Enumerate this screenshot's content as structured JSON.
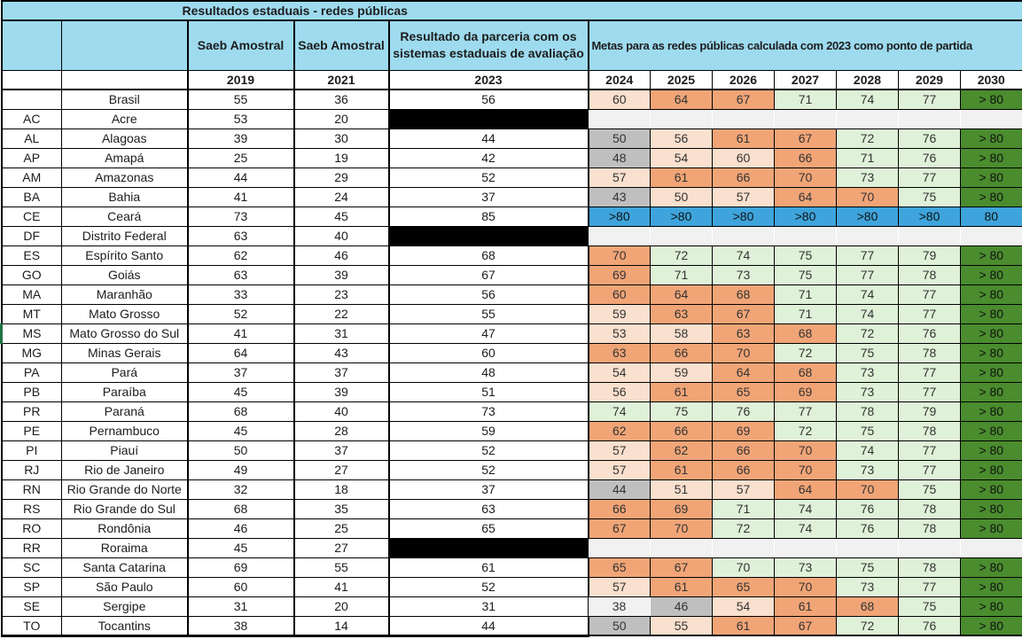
{
  "title": "Resultados estaduais - redes públicas",
  "header": {
    "col_2019_label": "Saeb Amostral",
    "col_2021_label": "Saeb Amostral",
    "col_2023_label": "Resultado da parceria com os sistemas estaduais de avaliação",
    "metas_label": "Metas para as redes públicas calculada com 2023 como ponto de partida",
    "years": [
      "2019",
      "2021",
      "2023",
      "2024",
      "2025",
      "2026",
      "2027",
      "2028",
      "2029",
      "2030"
    ]
  },
  "colors": {
    "header_bg": "#9EDBEF",
    "pale": "#FAE0CE",
    "salmon": "#F1A577",
    "green": "#DFF1D8",
    "dark": "#4A8C2E",
    "blue": "#3EA4DB",
    "gray": "#BFBFBF",
    "empty": "#F1F1F1",
    "redacted_black": "#000000"
  },
  "rows": [
    {
      "code": "",
      "name": "Brasil",
      "s2019": "55",
      "s2021": "36",
      "s2023": "56",
      "redacted2023": false,
      "metas": [
        {
          "v": "60",
          "c": "pale"
        },
        {
          "v": "64",
          "c": "salmon"
        },
        {
          "v": "67",
          "c": "salmon"
        },
        {
          "v": "71",
          "c": "green"
        },
        {
          "v": "74",
          "c": "green"
        },
        {
          "v": "77",
          "c": "green"
        },
        {
          "v": "> 80",
          "c": "dark"
        }
      ]
    },
    {
      "code": "AC",
      "name": "Acre",
      "s2019": "53",
      "s2021": "20",
      "s2023": "",
      "redacted2023": true,
      "metas": [
        {
          "v": "",
          "c": "empty"
        },
        {
          "v": "",
          "c": "empty"
        },
        {
          "v": "",
          "c": "empty"
        },
        {
          "v": "",
          "c": "empty"
        },
        {
          "v": "",
          "c": "empty"
        },
        {
          "v": "",
          "c": "empty"
        },
        {
          "v": "",
          "c": "empty"
        }
      ]
    },
    {
      "code": "AL",
      "name": "Alagoas",
      "s2019": "39",
      "s2021": "30",
      "s2023": "44",
      "redacted2023": false,
      "metas": [
        {
          "v": "50",
          "c": "gray"
        },
        {
          "v": "56",
          "c": "pale"
        },
        {
          "v": "61",
          "c": "salmon"
        },
        {
          "v": "67",
          "c": "salmon"
        },
        {
          "v": "72",
          "c": "green"
        },
        {
          "v": "76",
          "c": "green"
        },
        {
          "v": "> 80",
          "c": "dark"
        }
      ]
    },
    {
      "code": "AP",
      "name": "Amapá",
      "s2019": "25",
      "s2021": "19",
      "s2023": "42",
      "redacted2023": false,
      "metas": [
        {
          "v": "48",
          "c": "gray"
        },
        {
          "v": "54",
          "c": "pale"
        },
        {
          "v": "60",
          "c": "pale"
        },
        {
          "v": "66",
          "c": "salmon"
        },
        {
          "v": "71",
          "c": "green"
        },
        {
          "v": "76",
          "c": "green"
        },
        {
          "v": "> 80",
          "c": "dark"
        }
      ]
    },
    {
      "code": "AM",
      "name": "Amazonas",
      "s2019": "44",
      "s2021": "29",
      "s2023": "52",
      "redacted2023": false,
      "metas": [
        {
          "v": "57",
          "c": "pale"
        },
        {
          "v": "61",
          "c": "salmon"
        },
        {
          "v": "66",
          "c": "salmon"
        },
        {
          "v": "70",
          "c": "salmon"
        },
        {
          "v": "73",
          "c": "green"
        },
        {
          "v": "77",
          "c": "green"
        },
        {
          "v": "> 80",
          "c": "dark"
        }
      ]
    },
    {
      "code": "BA",
      "name": "Bahia",
      "s2019": "41",
      "s2021": "24",
      "s2023": "37",
      "redacted2023": false,
      "metas": [
        {
          "v": "43",
          "c": "gray"
        },
        {
          "v": "50",
          "c": "pale"
        },
        {
          "v": "57",
          "c": "pale"
        },
        {
          "v": "64",
          "c": "salmon"
        },
        {
          "v": "70",
          "c": "salmon"
        },
        {
          "v": "75",
          "c": "green"
        },
        {
          "v": "> 80",
          "c": "dark"
        }
      ]
    },
    {
      "code": "CE",
      "name": "Ceará",
      "s2019": "73",
      "s2021": "45",
      "s2023": "85",
      "redacted2023": false,
      "metas": [
        {
          "v": ">80",
          "c": "blue"
        },
        {
          "v": ">80",
          "c": "blue"
        },
        {
          "v": ">80",
          "c": "blue"
        },
        {
          "v": ">80",
          "c": "blue"
        },
        {
          "v": ">80",
          "c": "blue"
        },
        {
          "v": ">80",
          "c": "blue"
        },
        {
          "v": "80",
          "c": "blue"
        }
      ]
    },
    {
      "code": "DF",
      "name": "Distrito Federal",
      "s2019": "63",
      "s2021": "40",
      "s2023": "",
      "redacted2023": true,
      "metas": [
        {
          "v": "",
          "c": "empty"
        },
        {
          "v": "",
          "c": "empty"
        },
        {
          "v": "",
          "c": "empty"
        },
        {
          "v": "",
          "c": "empty"
        },
        {
          "v": "",
          "c": "empty"
        },
        {
          "v": "",
          "c": "empty"
        },
        {
          "v": "",
          "c": "empty"
        }
      ]
    },
    {
      "code": "ES",
      "name": "Espírito Santo",
      "s2019": "62",
      "s2021": "46",
      "s2023": "68",
      "redacted2023": false,
      "metas": [
        {
          "v": "70",
          "c": "salmon"
        },
        {
          "v": "72",
          "c": "green"
        },
        {
          "v": "74",
          "c": "green"
        },
        {
          "v": "75",
          "c": "green"
        },
        {
          "v": "77",
          "c": "green"
        },
        {
          "v": "79",
          "c": "green"
        },
        {
          "v": "> 80",
          "c": "dark"
        }
      ]
    },
    {
      "code": "GO",
      "name": "Goiás",
      "s2019": "63",
      "s2021": "39",
      "s2023": "67",
      "redacted2023": false,
      "metas": [
        {
          "v": "69",
          "c": "salmon"
        },
        {
          "v": "71",
          "c": "green"
        },
        {
          "v": "73",
          "c": "green"
        },
        {
          "v": "75",
          "c": "green"
        },
        {
          "v": "77",
          "c": "green"
        },
        {
          "v": "78",
          "c": "green"
        },
        {
          "v": "> 80",
          "c": "dark"
        }
      ]
    },
    {
      "code": "MA",
      "name": "Maranhão",
      "s2019": "33",
      "s2021": "23",
      "s2023": "56",
      "redacted2023": false,
      "metas": [
        {
          "v": "60",
          "c": "salmon"
        },
        {
          "v": "64",
          "c": "salmon"
        },
        {
          "v": "68",
          "c": "salmon"
        },
        {
          "v": "71",
          "c": "green"
        },
        {
          "v": "74",
          "c": "green"
        },
        {
          "v": "77",
          "c": "green"
        },
        {
          "v": "> 80",
          "c": "dark"
        }
      ]
    },
    {
      "code": "MT",
      "name": "Mato Grosso",
      "s2019": "52",
      "s2021": "22",
      "s2023": "55",
      "redacted2023": false,
      "metas": [
        {
          "v": "59",
          "c": "pale"
        },
        {
          "v": "63",
          "c": "salmon"
        },
        {
          "v": "67",
          "c": "salmon"
        },
        {
          "v": "71",
          "c": "green"
        },
        {
          "v": "74",
          "c": "green"
        },
        {
          "v": "77",
          "c": "green"
        },
        {
          "v": "> 80",
          "c": "dark"
        }
      ]
    },
    {
      "code": "MS",
      "name": "Mato Grosso do Sul",
      "s2019": "41",
      "s2021": "31",
      "s2023": "47",
      "redacted2023": false,
      "green_mark": true,
      "metas": [
        {
          "v": "53",
          "c": "pale"
        },
        {
          "v": "58",
          "c": "pale"
        },
        {
          "v": "63",
          "c": "salmon"
        },
        {
          "v": "68",
          "c": "salmon"
        },
        {
          "v": "72",
          "c": "green"
        },
        {
          "v": "76",
          "c": "green"
        },
        {
          "v": "> 80",
          "c": "dark"
        }
      ]
    },
    {
      "code": "MG",
      "name": "Minas Gerais",
      "s2019": "64",
      "s2021": "43",
      "s2023": "60",
      "redacted2023": false,
      "metas": [
        {
          "v": "63",
          "c": "salmon"
        },
        {
          "v": "66",
          "c": "salmon"
        },
        {
          "v": "70",
          "c": "salmon"
        },
        {
          "v": "72",
          "c": "green"
        },
        {
          "v": "75",
          "c": "green"
        },
        {
          "v": "78",
          "c": "green"
        },
        {
          "v": "> 80",
          "c": "dark"
        }
      ]
    },
    {
      "code": "PA",
      "name": "Pará",
      "s2019": "37",
      "s2021": "37",
      "s2023": "48",
      "redacted2023": false,
      "metas": [
        {
          "v": "54",
          "c": "pale"
        },
        {
          "v": "59",
          "c": "pale"
        },
        {
          "v": "64",
          "c": "salmon"
        },
        {
          "v": "68",
          "c": "salmon"
        },
        {
          "v": "73",
          "c": "green"
        },
        {
          "v": "77",
          "c": "green"
        },
        {
          "v": "> 80",
          "c": "dark"
        }
      ]
    },
    {
      "code": "PB",
      "name": "Paraíba",
      "s2019": "45",
      "s2021": "39",
      "s2023": "51",
      "redacted2023": false,
      "metas": [
        {
          "v": "56",
          "c": "pale"
        },
        {
          "v": "61",
          "c": "salmon"
        },
        {
          "v": "65",
          "c": "salmon"
        },
        {
          "v": "69",
          "c": "salmon"
        },
        {
          "v": "73",
          "c": "green"
        },
        {
          "v": "77",
          "c": "green"
        },
        {
          "v": "> 80",
          "c": "dark"
        }
      ]
    },
    {
      "code": "PR",
      "name": "Paraná",
      "s2019": "68",
      "s2021": "40",
      "s2023": "73",
      "redacted2023": false,
      "metas": [
        {
          "v": "74",
          "c": "green"
        },
        {
          "v": "75",
          "c": "green"
        },
        {
          "v": "76",
          "c": "green"
        },
        {
          "v": "77",
          "c": "green"
        },
        {
          "v": "78",
          "c": "green"
        },
        {
          "v": "79",
          "c": "green"
        },
        {
          "v": "> 80",
          "c": "dark"
        }
      ]
    },
    {
      "code": "PE",
      "name": "Pernambuco",
      "s2019": "45",
      "s2021": "28",
      "s2023": "59",
      "redacted2023": false,
      "metas": [
        {
          "v": "62",
          "c": "salmon"
        },
        {
          "v": "66",
          "c": "salmon"
        },
        {
          "v": "69",
          "c": "salmon"
        },
        {
          "v": "72",
          "c": "green"
        },
        {
          "v": "75",
          "c": "green"
        },
        {
          "v": "78",
          "c": "green"
        },
        {
          "v": "> 80",
          "c": "dark"
        }
      ]
    },
    {
      "code": "PI",
      "name": "Piauí",
      "s2019": "50",
      "s2021": "37",
      "s2023": "52",
      "redacted2023": false,
      "metas": [
        {
          "v": "57",
          "c": "pale"
        },
        {
          "v": "62",
          "c": "salmon"
        },
        {
          "v": "66",
          "c": "salmon"
        },
        {
          "v": "70",
          "c": "salmon"
        },
        {
          "v": "74",
          "c": "green"
        },
        {
          "v": "77",
          "c": "green"
        },
        {
          "v": "> 80",
          "c": "dark"
        }
      ]
    },
    {
      "code": "RJ",
      "name": "Rio de Janeiro",
      "s2019": "49",
      "s2021": "27",
      "s2023": "52",
      "redacted2023": false,
      "metas": [
        {
          "v": "57",
          "c": "pale"
        },
        {
          "v": "61",
          "c": "salmon"
        },
        {
          "v": "66",
          "c": "salmon"
        },
        {
          "v": "70",
          "c": "salmon"
        },
        {
          "v": "73",
          "c": "green"
        },
        {
          "v": "77",
          "c": "green"
        },
        {
          "v": "> 80",
          "c": "dark"
        }
      ]
    },
    {
      "code": "RN",
      "name": "Rio Grande do Norte",
      "s2019": "32",
      "s2021": "18",
      "s2023": "37",
      "redacted2023": false,
      "metas": [
        {
          "v": "44",
          "c": "gray"
        },
        {
          "v": "51",
          "c": "pale"
        },
        {
          "v": "57",
          "c": "pale"
        },
        {
          "v": "64",
          "c": "salmon"
        },
        {
          "v": "70",
          "c": "salmon"
        },
        {
          "v": "75",
          "c": "green"
        },
        {
          "v": "> 80",
          "c": "dark"
        }
      ]
    },
    {
      "code": "RS",
      "name": "Rio Grande do Sul",
      "s2019": "68",
      "s2021": "35",
      "s2023": "63",
      "redacted2023": false,
      "metas": [
        {
          "v": "66",
          "c": "salmon"
        },
        {
          "v": "69",
          "c": "salmon"
        },
        {
          "v": "71",
          "c": "green"
        },
        {
          "v": "74",
          "c": "green"
        },
        {
          "v": "76",
          "c": "green"
        },
        {
          "v": "78",
          "c": "green"
        },
        {
          "v": "> 80",
          "c": "dark"
        }
      ]
    },
    {
      "code": "RO",
      "name": "Rondônia",
      "s2019": "46",
      "s2021": "25",
      "s2023": "65",
      "redacted2023": false,
      "metas": [
        {
          "v": "67",
          "c": "salmon"
        },
        {
          "v": "70",
          "c": "salmon"
        },
        {
          "v": "72",
          "c": "green"
        },
        {
          "v": "74",
          "c": "green"
        },
        {
          "v": "76",
          "c": "green"
        },
        {
          "v": "78",
          "c": "green"
        },
        {
          "v": "> 80",
          "c": "dark"
        }
      ]
    },
    {
      "code": "RR",
      "name": "Roraima",
      "s2019": "45",
      "s2021": "27",
      "s2023": "",
      "redacted2023": true,
      "metas": [
        {
          "v": "",
          "c": "empty"
        },
        {
          "v": "",
          "c": "empty"
        },
        {
          "v": "",
          "c": "empty"
        },
        {
          "v": "",
          "c": "empty"
        },
        {
          "v": "",
          "c": "empty"
        },
        {
          "v": "",
          "c": "empty"
        },
        {
          "v": "",
          "c": "empty"
        }
      ]
    },
    {
      "code": "SC",
      "name": "Santa Catarina",
      "s2019": "69",
      "s2021": "55",
      "s2023": "61",
      "redacted2023": false,
      "metas": [
        {
          "v": "65",
          "c": "salmon"
        },
        {
          "v": "67",
          "c": "salmon"
        },
        {
          "v": "70",
          "c": "green"
        },
        {
          "v": "73",
          "c": "green"
        },
        {
          "v": "75",
          "c": "green"
        },
        {
          "v": "78",
          "c": "green"
        },
        {
          "v": "> 80",
          "c": "dark"
        }
      ]
    },
    {
      "code": "SP",
      "name": "São Paulo",
      "s2019": "60",
      "s2021": "41",
      "s2023": "52",
      "redacted2023": false,
      "metas": [
        {
          "v": "57",
          "c": "pale"
        },
        {
          "v": "61",
          "c": "salmon"
        },
        {
          "v": "65",
          "c": "salmon"
        },
        {
          "v": "70",
          "c": "salmon"
        },
        {
          "v": "73",
          "c": "green"
        },
        {
          "v": "77",
          "c": "green"
        },
        {
          "v": "> 80",
          "c": "dark"
        }
      ]
    },
    {
      "code": "SE",
      "name": "Sergipe",
      "s2019": "31",
      "s2021": "20",
      "s2023": "31",
      "redacted2023": false,
      "metas": [
        {
          "v": "38",
          "c": "empty"
        },
        {
          "v": "46",
          "c": "gray"
        },
        {
          "v": "54",
          "c": "pale"
        },
        {
          "v": "61",
          "c": "salmon"
        },
        {
          "v": "68",
          "c": "salmon"
        },
        {
          "v": "75",
          "c": "green"
        },
        {
          "v": "> 80",
          "c": "dark"
        }
      ]
    },
    {
      "code": "TO",
      "name": "Tocantins",
      "s2019": "38",
      "s2021": "14",
      "s2023": "44",
      "redacted2023": false,
      "metas": [
        {
          "v": "50",
          "c": "gray"
        },
        {
          "v": "55",
          "c": "pale"
        },
        {
          "v": "61",
          "c": "salmon"
        },
        {
          "v": "67",
          "c": "salmon"
        },
        {
          "v": "72",
          "c": "green"
        },
        {
          "v": "76",
          "c": "green"
        },
        {
          "v": "> 80",
          "c": "dark"
        }
      ]
    }
  ]
}
